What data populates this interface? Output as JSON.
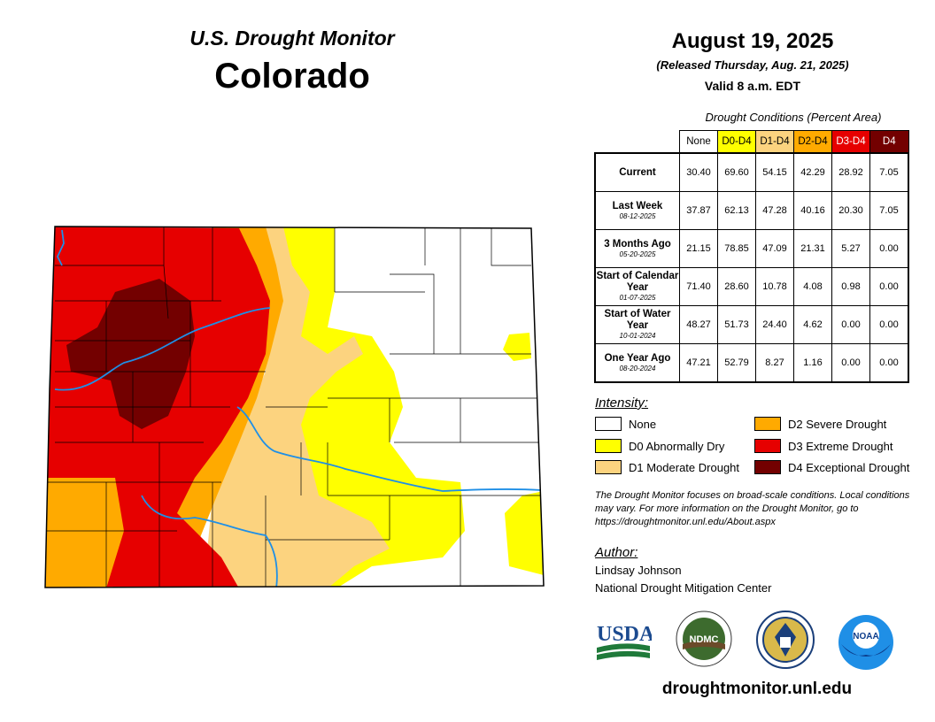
{
  "header": {
    "title": "U.S. Drought Monitor",
    "state": "Colorado",
    "date": "August 19, 2025",
    "released": "(Released Thursday, Aug. 21, 2025)",
    "valid": "Valid 8 a.m. EDT"
  },
  "table": {
    "title": "Drought Conditions (Percent Area)",
    "columns": [
      {
        "label": "None",
        "color": "#ffffff",
        "text_color": "#000000"
      },
      {
        "label": "D0-D4",
        "color": "#ffff00",
        "text_color": "#000000"
      },
      {
        "label": "D1-D4",
        "color": "#fcd37f",
        "text_color": "#000000"
      },
      {
        "label": "D2-D4",
        "color": "#ffaa00",
        "text_color": "#000000"
      },
      {
        "label": "D3-D4",
        "color": "#e60000",
        "text_color": "#ffffff"
      },
      {
        "label": "D4",
        "color": "#730000",
        "text_color": "#ffffff"
      }
    ],
    "rows": [
      {
        "label": "Current",
        "date": "",
        "values": [
          "30.40",
          "69.60",
          "54.15",
          "42.29",
          "28.92",
          "7.05"
        ]
      },
      {
        "label": "Last Week",
        "date": "08-12-2025",
        "values": [
          "37.87",
          "62.13",
          "47.28",
          "40.16",
          "20.30",
          "7.05"
        ]
      },
      {
        "label": "3 Months Ago",
        "date": "05-20-2025",
        "values": [
          "21.15",
          "78.85",
          "47.09",
          "21.31",
          "5.27",
          "0.00"
        ]
      },
      {
        "label": "Start of Calendar Year",
        "date": "01-07-2025",
        "values": [
          "71.40",
          "28.60",
          "10.78",
          "4.08",
          "0.98",
          "0.00"
        ]
      },
      {
        "label": "Start of Water Year",
        "date": "10-01-2024",
        "values": [
          "48.27",
          "51.73",
          "24.40",
          "4.62",
          "0.00",
          "0.00"
        ]
      },
      {
        "label": "One Year Ago",
        "date": "08-20-2024",
        "values": [
          "47.21",
          "52.79",
          "8.27",
          "1.16",
          "0.00",
          "0.00"
        ]
      }
    ]
  },
  "legend": {
    "title": "Intensity:",
    "items": [
      {
        "label": "None",
        "color": "#ffffff"
      },
      {
        "label": "D0 Abnormally Dry",
        "color": "#ffff00"
      },
      {
        "label": "D1 Moderate Drought",
        "color": "#fcd37f"
      },
      {
        "label": "D2 Severe Drought",
        "color": "#ffaa00"
      },
      {
        "label": "D3 Extreme Drought",
        "color": "#e60000"
      },
      {
        "label": "D4 Exceptional Drought",
        "color": "#730000"
      }
    ]
  },
  "note": "The Drought Monitor focuses on broad-scale conditions. Local conditions may vary. For more information on the Drought Monitor, go to https://droughtmonitor.unl.edu/About.aspx",
  "author": {
    "title": "Author:",
    "name": "Lindsay Johnson",
    "org": "National Drought Mitigation Center"
  },
  "logos": {
    "usda": "USDA",
    "ndmc": "NDMC",
    "noaa": "NOAA"
  },
  "website": "droughtmonitor.unl.edu",
  "icons": {
    "usda": "usda-logo",
    "ndmc": "ndmc-seal",
    "commerce": "commerce-seal",
    "noaa": "noaa-logo"
  }
}
